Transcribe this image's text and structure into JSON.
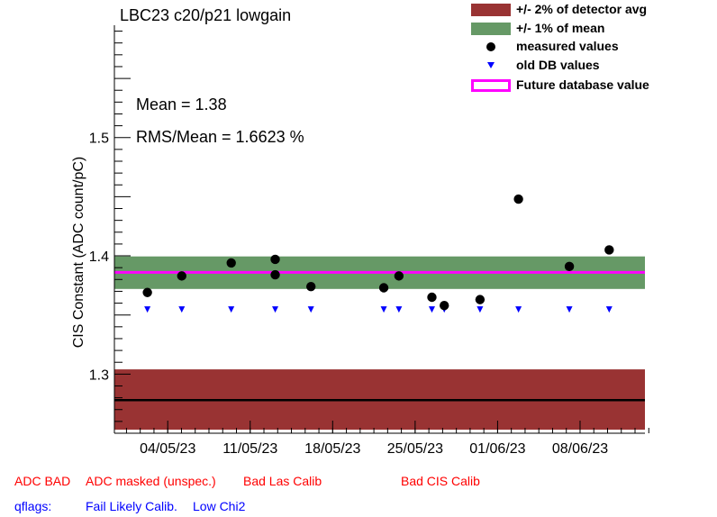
{
  "chart_data": {
    "type": "scatter",
    "title": "LBC23 c20/p21 lowgain",
    "ylabel": "CIS Constant (ADC count/pC)",
    "xlabel": "",
    "ylim": [
      1.25,
      1.595
    ],
    "xlim": [
      0,
      38.6
    ],
    "x_ticks": [
      {
        "label": "04/05/23",
        "x": 3.88
      },
      {
        "label": "11/05/23",
        "x": 9.88
      },
      {
        "label": "18/05/23",
        "x": 15.88
      },
      {
        "label": "25/05/23",
        "x": 21.88
      },
      {
        "label": "01/06/23",
        "x": 27.88
      },
      {
        "label": "08/06/23",
        "x": 33.88
      }
    ],
    "y_ticks": [
      1.3,
      1.4,
      1.5
    ],
    "detector_avg": 1.278,
    "detector_band": [
      1.253,
      1.304
    ],
    "mean_band": [
      1.372,
      1.3995
    ],
    "future_db_value": 1.386,
    "mean_line": 1.386,
    "series": [
      {
        "name": "measured values",
        "color": "#000000",
        "marker": "circle",
        "points": [
          {
            "x": 2.4,
            "y": 1.369
          },
          {
            "x": 4.9,
            "y": 1.383
          },
          {
            "x": 8.5,
            "y": 1.394
          },
          {
            "x": 11.7,
            "y": 1.397
          },
          {
            "x": 11.7,
            "y": 1.384
          },
          {
            "x": 14.3,
            "y": 1.374
          },
          {
            "x": 19.6,
            "y": 1.373
          },
          {
            "x": 20.7,
            "y": 1.383
          },
          {
            "x": 23.1,
            "y": 1.365
          },
          {
            "x": 24.0,
            "y": 1.358
          },
          {
            "x": 26.6,
            "y": 1.363
          },
          {
            "x": 29.4,
            "y": 1.448
          },
          {
            "x": 33.1,
            "y": 1.391
          },
          {
            "x": 36.0,
            "y": 1.405
          }
        ]
      },
      {
        "name": "old DB values",
        "color": "#0000ff",
        "marker": "triangle-down",
        "points": [
          {
            "x": 2.4,
            "y": 1.355
          },
          {
            "x": 4.9,
            "y": 1.355
          },
          {
            "x": 8.5,
            "y": 1.355
          },
          {
            "x": 11.7,
            "y": 1.355
          },
          {
            "x": 14.3,
            "y": 1.355
          },
          {
            "x": 19.6,
            "y": 1.355
          },
          {
            "x": 20.7,
            "y": 1.355
          },
          {
            "x": 23.1,
            "y": 1.355
          },
          {
            "x": 24.0,
            "y": 1.355
          },
          {
            "x": 26.6,
            "y": 1.355
          },
          {
            "x": 29.4,
            "y": 1.355
          },
          {
            "x": 33.1,
            "y": 1.355
          },
          {
            "x": 36.0,
            "y": 1.355
          }
        ]
      }
    ],
    "legend": {
      "position": "top-right",
      "entries": [
        {
          "label": "+/- 2% of detector avg",
          "color": "#993333",
          "kind": "box"
        },
        {
          "label": "+/- 1% of mean",
          "color": "#669966",
          "kind": "box"
        },
        {
          "label": "measured values",
          "color": "#000000",
          "kind": "circle"
        },
        {
          "label": "old DB values",
          "color": "#0000ff",
          "kind": "triangle"
        },
        {
          "label": "Future database value",
          "color": "#ff00ff",
          "kind": "outline"
        }
      ]
    },
    "stats": {
      "mean": "Mean = 1.38",
      "rms": "RMS/Mean = 1.6623 %"
    }
  },
  "flags": {
    "adc_bad": "ADC BAD",
    "adc_masked": "ADC masked (unspec.)",
    "bad_las": "Bad Las Calib",
    "bad_cis": "Bad CIS Calib",
    "qflags": "qflags:",
    "fail_likely": "Fail Likely Calib.",
    "low_chi2": "Low Chi2"
  }
}
